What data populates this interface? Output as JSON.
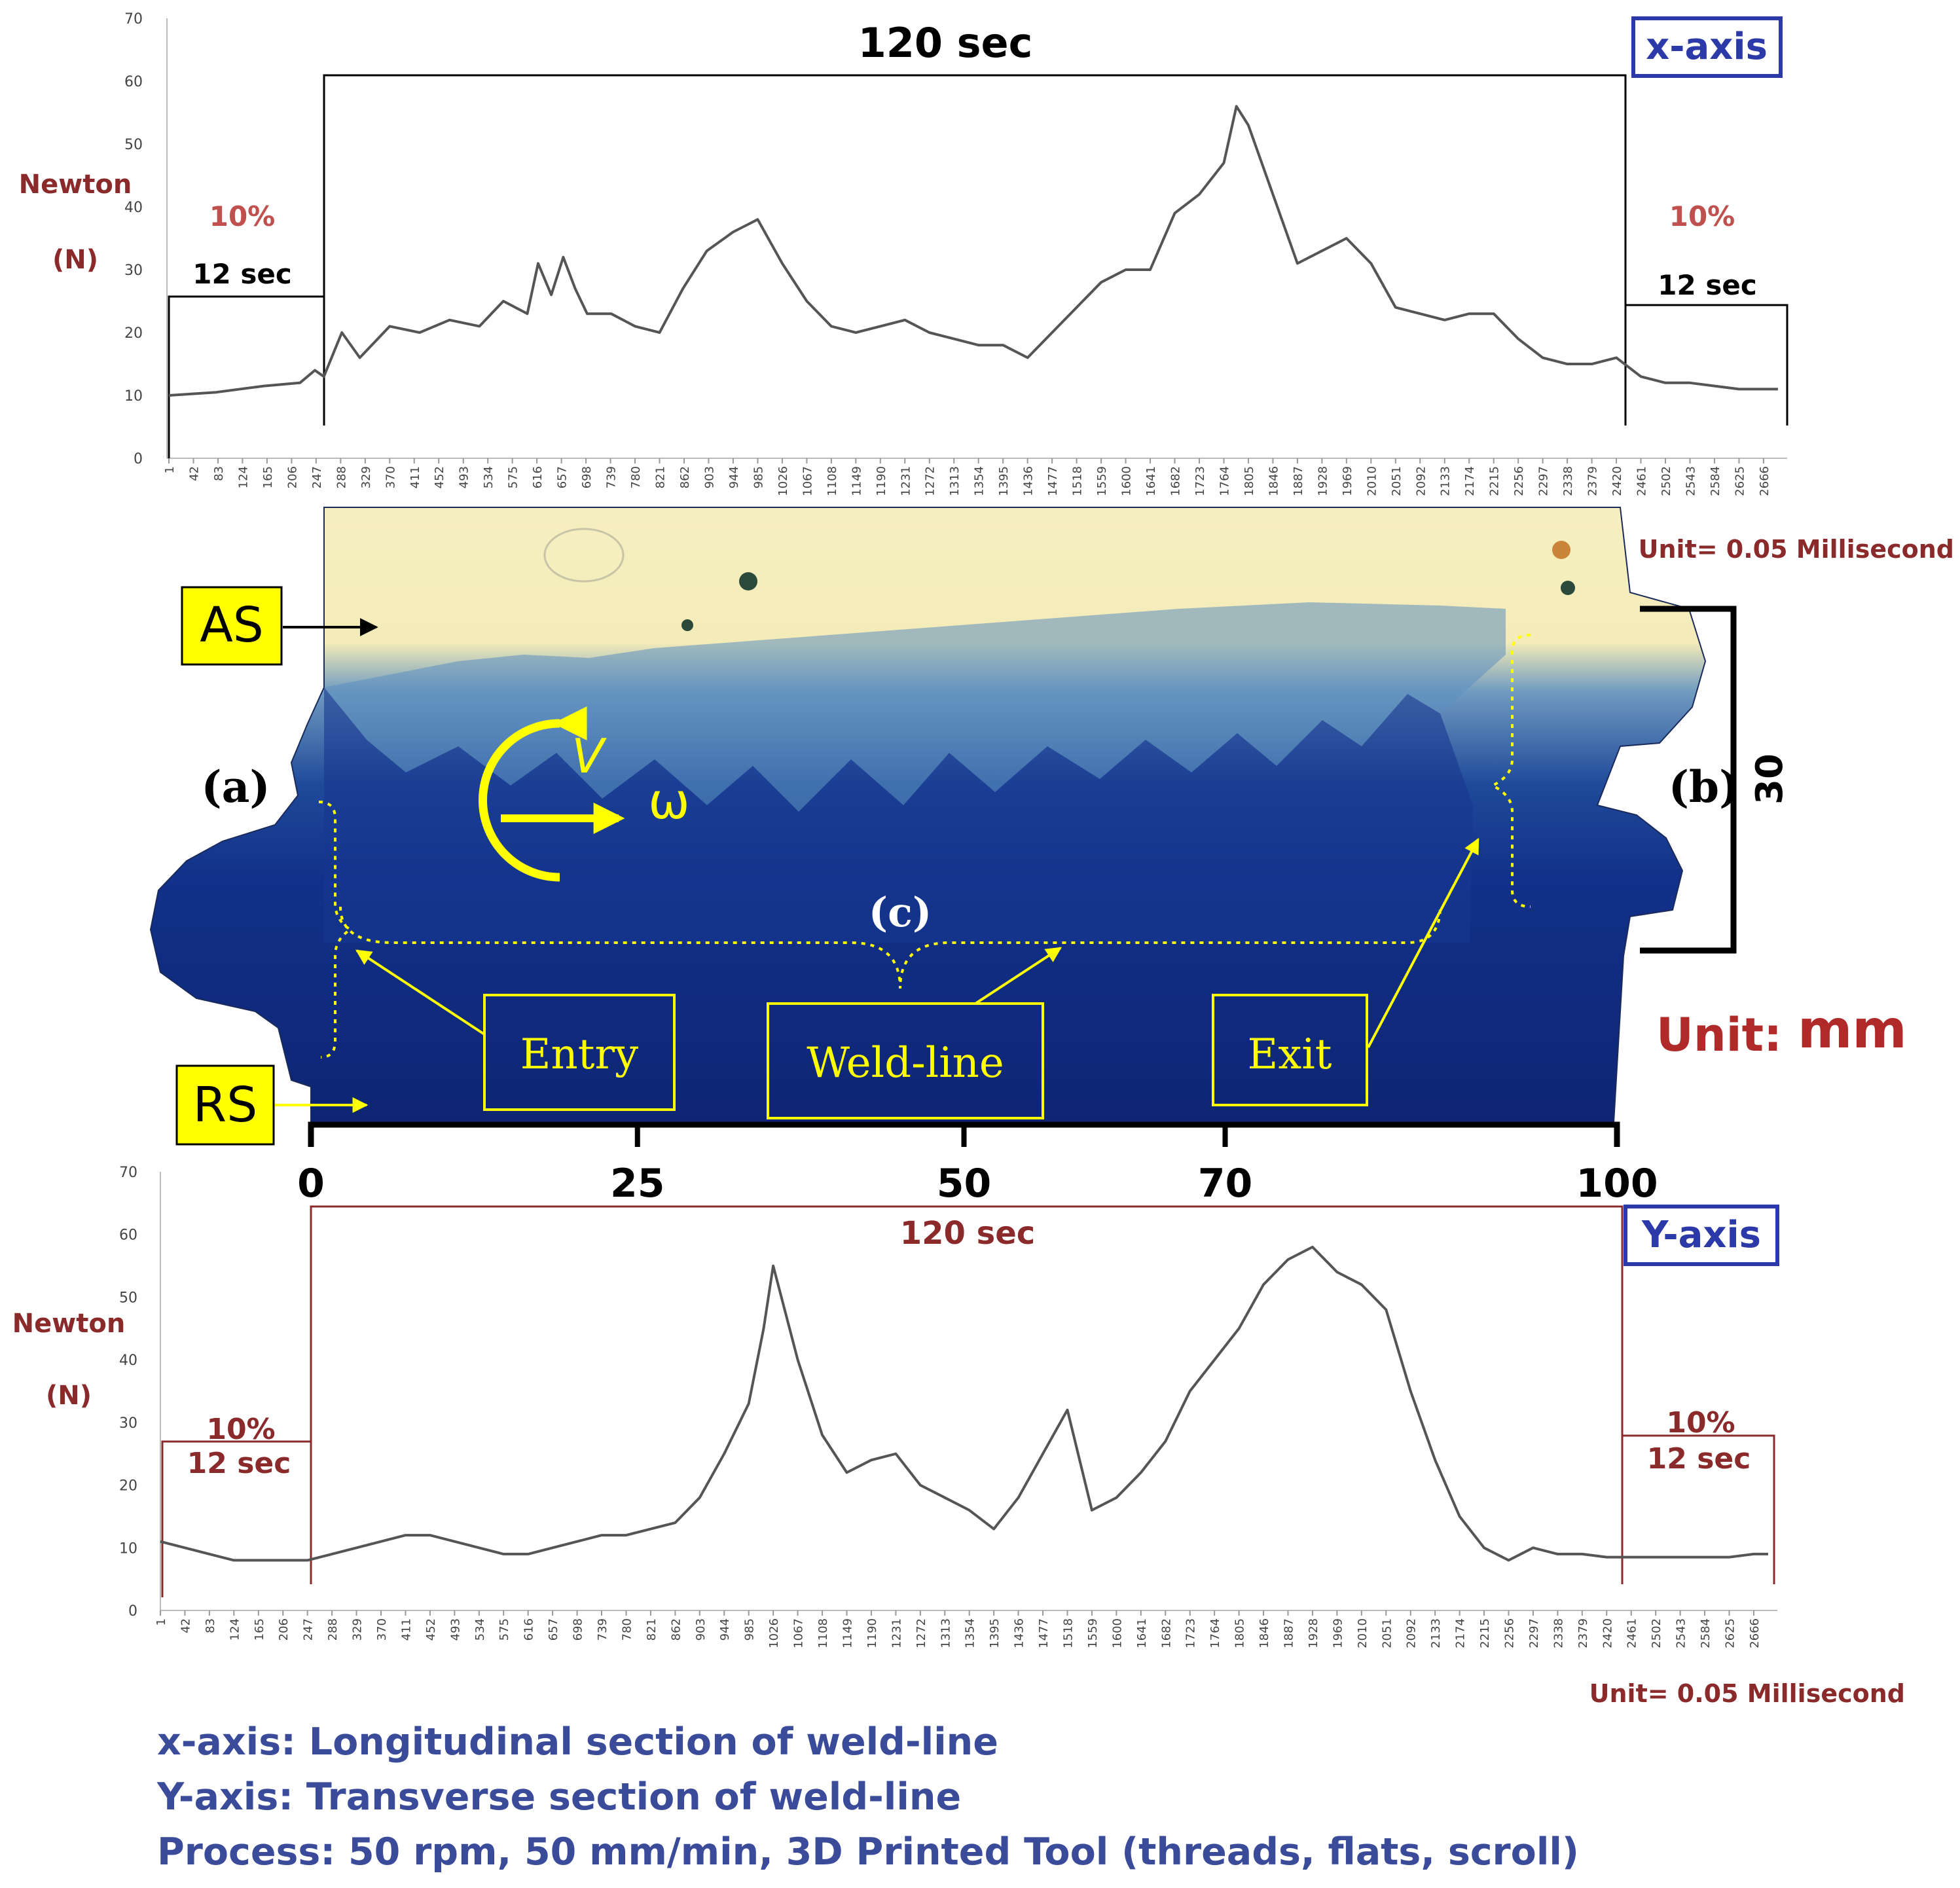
{
  "top_chart": {
    "axis_tag": "x-axis",
    "ylabel_line1": "Newton",
    "ylabel_line2": "(N)",
    "unit_note": "Unit= 0.05 Millisecond",
    "main_bracket_label": "120 sec",
    "left_bracket_percent": "10%",
    "left_bracket_time": "12 sec",
    "right_bracket_percent": "10%",
    "right_bracket_time": "12 sec",
    "y_ticks": [
      "0",
      "10",
      "20",
      "30",
      "40",
      "50",
      "60",
      "70"
    ],
    "x_ticks": [
      "1",
      "42",
      "83",
      "124",
      "165",
      "206",
      "247",
      "288",
      "329",
      "370",
      "411",
      "452",
      "493",
      "534",
      "575",
      "616",
      "657",
      "698",
      "739",
      "780",
      "821",
      "862",
      "903",
      "944",
      "985",
      "1026",
      "1067",
      "1108",
      "1149",
      "1190",
      "1231",
      "1272",
      "1313",
      "1354",
      "1395",
      "1436",
      "1477",
      "1518",
      "1559",
      "1600",
      "1641",
      "1682",
      "1723",
      "1764",
      "1805",
      "1846",
      "1887",
      "1928",
      "1969",
      "2010",
      "2051",
      "2092",
      "2133",
      "2174",
      "2215",
      "2256",
      "2297",
      "2338",
      "2379",
      "2420",
      "2461",
      "2502",
      "2543",
      "2584",
      "2625",
      "2666"
    ]
  },
  "bottom_chart": {
    "axis_tag": "Y-axis",
    "ylabel_line1": "Newton",
    "ylabel_line2": "(N)",
    "unit_note": "Unit= 0.05 Millisecond",
    "main_bracket_label": "120 sec",
    "left_bracket_percent": "10%",
    "left_bracket_time": "12 sec",
    "right_bracket_percent": "10%",
    "right_bracket_time": "12 sec",
    "y_ticks": [
      "0",
      "10",
      "20",
      "30",
      "40",
      "50",
      "60",
      "70"
    ],
    "x_ticks": [
      "1",
      "42",
      "83",
      "124",
      "165",
      "206",
      "247",
      "288",
      "329",
      "370",
      "411",
      "452",
      "493",
      "534",
      "575",
      "616",
      "657",
      "698",
      "739",
      "780",
      "821",
      "862",
      "903",
      "944",
      "985",
      "1026",
      "1067",
      "1108",
      "1149",
      "1190",
      "1231",
      "1272",
      "1313",
      "1354",
      "1395",
      "1436",
      "1477",
      "1518",
      "1559",
      "1600",
      "1641",
      "1682",
      "1723",
      "1764",
      "1805",
      "1846",
      "1887",
      "1928",
      "1969",
      "2010",
      "2051",
      "2092",
      "2133",
      "2174",
      "2215",
      "2256",
      "2297",
      "2338",
      "2379",
      "2420",
      "2461",
      "2502",
      "2543",
      "2584",
      "2625",
      "2666"
    ]
  },
  "specimen": {
    "label_as": "AS",
    "label_rs": "RS",
    "label_a": "(a)",
    "label_b": "(b)",
    "label_c": "(c)",
    "velocity_symbol": "V",
    "omega_symbol": "ω",
    "entry_label": "Entry",
    "weld_line_label": "Weld-line",
    "exit_label": "Exit",
    "height_label": "30",
    "unit_word": "Unit:",
    "unit_value": "mm",
    "scale_ticks": [
      "0",
      "25",
      "50",
      "70",
      "100"
    ]
  },
  "captions": {
    "line1": "x-axis: Longitudinal section of weld-line",
    "line2": "Y-axis: Transverse section of weld-line",
    "line3": "Process: 50 rpm, 50 mm/min, 3D Printed Tool (threads, flats, scroll)"
  },
  "colors": {
    "trace": "#555555",
    "dark_red": "#8b2a2a",
    "navy_specimen": "#0f2a7a",
    "cream_specimen": "#f6efc0",
    "callout_yellow": "#ffff00",
    "tag_blue": "#2b3aa8",
    "caption_blue": "#3a4b9a"
  },
  "chart_data": [
    {
      "type": "line",
      "title": "x-axis",
      "ylabel": "Newton (N)",
      "xlabel": "Unit= 0.05 Millisecond",
      "xlim": [
        1,
        2700
      ],
      "ylim": [
        0,
        70
      ],
      "series": [
        {
          "x": [
            1,
            80,
            160,
            220,
            245,
            260,
            290,
            320,
            370,
            420,
            470,
            520,
            560,
            600,
            618,
            640,
            660,
            680,
            700,
            740,
            780,
            821,
            860,
            900,
            944,
            985,
            1026,
            1067,
            1108,
            1149,
            1190,
            1231,
            1272,
            1313,
            1354,
            1395,
            1436,
            1477,
            1518,
            1559,
            1600,
            1641,
            1682,
            1723,
            1764,
            1785,
            1805,
            1846,
            1887,
            1928,
            1969,
            2010,
            2051,
            2092,
            2133,
            2174,
            2215,
            2256,
            2297,
            2338,
            2379,
            2420,
            2461,
            2502,
            2543,
            2584,
            2625,
            2666,
            2690
          ],
          "y": [
            10,
            10.5,
            11.5,
            12,
            14,
            13,
            20,
            16,
            21,
            20,
            22,
            21,
            25,
            23,
            31,
            26,
            32,
            27,
            23,
            23,
            21,
            20,
            27,
            33,
            36,
            38,
            31,
            25,
            21,
            20,
            21,
            22,
            20,
            19,
            18,
            18,
            16,
            20,
            24,
            28,
            30,
            30,
            39,
            42,
            47,
            56,
            53,
            42,
            31,
            33,
            35,
            31,
            24,
            23,
            22,
            23,
            23,
            19,
            16,
            15,
            15,
            16,
            13,
            12,
            12,
            11.5,
            11,
            11,
            11
          ]
        }
      ]
    },
    {
      "type": "line",
      "title": "Y-axis",
      "ylabel": "Newton (N)",
      "xlabel": "Unit= 0.05 Millisecond",
      "xlim": [
        1,
        2700
      ],
      "ylim": [
        0,
        70
      ],
      "series": [
        {
          "x": [
            1,
            42,
            83,
            124,
            165,
            206,
            247,
            288,
            329,
            370,
            411,
            452,
            493,
            534,
            575,
            616,
            657,
            698,
            739,
            780,
            821,
            862,
            903,
            944,
            985,
            1010,
            1026,
            1067,
            1108,
            1149,
            1190,
            1231,
            1272,
            1313,
            1354,
            1395,
            1436,
            1477,
            1518,
            1559,
            1600,
            1641,
            1682,
            1723,
            1764,
            1805,
            1846,
            1887,
            1928,
            1969,
            2010,
            2051,
            2092,
            2133,
            2174,
            2215,
            2256,
            2297,
            2338,
            2379,
            2420,
            2461,
            2502,
            2543,
            2584,
            2625,
            2666,
            2690
          ],
          "y": [
            11,
            10,
            9,
            8,
            8,
            8,
            8,
            9,
            10,
            11,
            12,
            12,
            11,
            10,
            9,
            9,
            10,
            11,
            12,
            12,
            13,
            14,
            18,
            25,
            33,
            45,
            55,
            40,
            28,
            22,
            24,
            25,
            20,
            18,
            16,
            13,
            18,
            25,
            32,
            16,
            18,
            22,
            27,
            35,
            40,
            45,
            52,
            56,
            58,
            54,
            52,
            48,
            35,
            24,
            15,
            10,
            8,
            10,
            9,
            9,
            8.5,
            8.5,
            8.5,
            8.5,
            8.5,
            8.5,
            9,
            9
          ]
        }
      ]
    }
  ]
}
